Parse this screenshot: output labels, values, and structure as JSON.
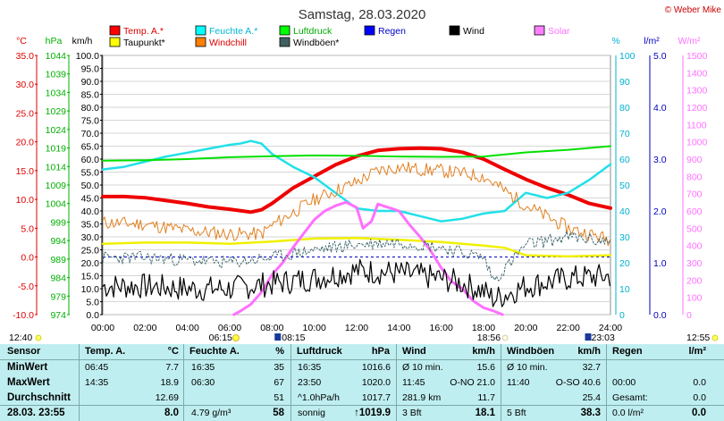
{
  "chart_data": {
    "type": "line",
    "title": "Samstag, 28.03.2020",
    "copyright": "© Weber Mike",
    "x_axis": {
      "ticks": [
        "00:00",
        "02:00",
        "04:00",
        "06:00",
        "08:00",
        "10:00",
        "12:00",
        "14:00",
        "16:00",
        "18:00",
        "20:00",
        "22:00",
        "24:00"
      ],
      "range_hours": [
        0,
        24
      ]
    },
    "left_axes": [
      {
        "unit": "°C",
        "color": "#e00000",
        "range": [
          -10,
          35
        ],
        "ticks": [
          "35.0",
          "30.0",
          "25.0",
          "20.0",
          "15.0",
          "10.0",
          "5.0",
          "0.0",
          "-5.0",
          "-10.0"
        ]
      },
      {
        "unit": "hPa",
        "color": "#00b000",
        "range": [
          974,
          1044
        ],
        "ticks": [
          "1044",
          "1039",
          "1034",
          "1029",
          "1024",
          "1019",
          "1014",
          "1009",
          "1004",
          "999",
          "994",
          "989",
          "984",
          "979",
          "974"
        ]
      },
      {
        "unit": "km/h",
        "color": "#000000",
        "range": [
          0,
          100
        ],
        "ticks": [
          "100.0",
          "95.0",
          "90.0",
          "85.0",
          "80.0",
          "75.0",
          "70.0",
          "65.0",
          "60.0",
          "55.0",
          "50.0",
          "45.0",
          "40.0",
          "35.0",
          "30.0",
          "25.0",
          "20.0",
          "15.0",
          "10.0",
          "5.0",
          "0.0"
        ]
      }
    ],
    "right_axes": [
      {
        "unit": "%",
        "color": "#00b0d0",
        "range": [
          0,
          100
        ],
        "ticks": [
          "100",
          "90",
          "80",
          "70",
          "60",
          "50",
          "40",
          "30",
          "20",
          "10",
          "0"
        ]
      },
      {
        "unit": "l/m²",
        "color": "#0000c0",
        "range": [
          0,
          5
        ],
        "ticks": [
          "5.0",
          "4.0",
          "3.0",
          "2.0",
          "1.0",
          "0.0"
        ]
      },
      {
        "unit": "W/m²",
        "color": "#ff70ff",
        "range": [
          0,
          1500
        ],
        "ticks": [
          "1500",
          "1400",
          "1300",
          "1200",
          "1100",
          "1000",
          "900",
          "800",
          "700",
          "600",
          "500",
          "400",
          "300",
          "200",
          "100",
          "0"
        ]
      }
    ],
    "legend": [
      {
        "name": "Temp. A.*",
        "color": "#ff0000"
      },
      {
        "name": "Feuchte A.*",
        "color": "#00ffff"
      },
      {
        "name": "Luftdruck",
        "color": "#00ff00"
      },
      {
        "name": "Regen",
        "color": "#0000ff"
      },
      {
        "name": "Wind",
        "color": "#000000"
      },
      {
        "name": "Solar",
        "color": "#ff80ff"
      },
      {
        "name": "Taupunkt*",
        "color": "#ffff00"
      },
      {
        "name": "Windchill",
        "color": "#ff8000"
      },
      {
        "name": "Windböen*",
        "color": "#406060"
      }
    ],
    "series": [
      {
        "name": "Temp. A.*",
        "axis": "°C",
        "color": "#ee0000",
        "width": 4,
        "x": [
          0,
          1,
          2,
          3,
          4,
          5,
          6,
          7,
          7.5,
          8,
          9,
          10,
          11,
          12,
          13,
          14,
          15,
          16,
          17,
          18,
          19,
          20,
          21,
          22,
          23,
          24
        ],
        "y": [
          10.5,
          10.5,
          10.3,
          9.8,
          9.3,
          8.7,
          8.3,
          7.8,
          8.2,
          9.3,
          12,
          14,
          16,
          17.5,
          18.5,
          18.8,
          18.9,
          18.8,
          18.2,
          17,
          15.2,
          13.5,
          12,
          10.8,
          9.3,
          8.5
        ]
      },
      {
        "name": "Feuchte A.*",
        "axis": "%",
        "color": "#22e0e8",
        "width": 2.5,
        "x": [
          0,
          1,
          2,
          3,
          4,
          5,
          6,
          6.5,
          7,
          7.5,
          8,
          9,
          10,
          11,
          12,
          13,
          14,
          15,
          16,
          17,
          18,
          19,
          20,
          21,
          22,
          23,
          24
        ],
        "y": [
          56,
          57,
          59,
          61,
          62.5,
          64,
          65.5,
          66,
          67,
          66,
          62,
          57,
          53,
          47,
          41,
          40,
          40,
          38,
          36,
          37,
          39,
          40,
          47,
          45,
          47,
          52,
          58
        ]
      },
      {
        "name": "Luftdruck",
        "axis": "hPa",
        "color": "#00e000",
        "width": 2,
        "x": [
          0,
          2,
          4,
          6,
          8,
          10,
          12,
          14,
          16,
          18,
          20,
          22,
          24
        ],
        "y": [
          1015.6,
          1015.7,
          1016,
          1016.5,
          1016.8,
          1017,
          1016.9,
          1016.7,
          1016.6,
          1016.7,
          1017.8,
          1018.5,
          1019.5
        ]
      },
      {
        "name": "Taupunkt*",
        "axis": "°C",
        "color": "#f0f000",
        "width": 2.5,
        "x": [
          0,
          2,
          4,
          6,
          8,
          10,
          12,
          14,
          16,
          18,
          19,
          20,
          21,
          22,
          23,
          24
        ],
        "y": [
          2.3,
          2.5,
          2.5,
          2.3,
          2.7,
          3.2,
          3.3,
          3.0,
          2.6,
          2.0,
          1.6,
          0.3,
          0.2,
          0.1,
          0.2,
          0.3
        ]
      },
      {
        "name": "Solar",
        "axis": "W/m²",
        "color": "#ff70ff",
        "width": 3,
        "x": [
          6.2,
          6.5,
          7,
          7.5,
          8,
          8.5,
          9,
          9.5,
          10,
          10.5,
          11,
          11.5,
          12,
          12.3,
          12.7,
          13,
          13.5,
          14,
          14.5,
          15,
          15.5,
          16,
          16.5,
          17,
          17.5,
          18,
          18.5,
          18.9
        ],
        "y": [
          0,
          20,
          60,
          130,
          230,
          300,
          390,
          470,
          550,
          600,
          630,
          650,
          620,
          500,
          540,
          640,
          620,
          600,
          520,
          450,
          370,
          270,
          190,
          150,
          80,
          40,
          20,
          0
        ]
      },
      {
        "name": "Windchill",
        "axis": "°C",
        "color": "#e08020",
        "width": 1,
        "noisy": true,
        "amp": 1.2,
        "seed": 11,
        "x": [
          0,
          2,
          4,
          6,
          7.5,
          8,
          10,
          12,
          13,
          14,
          15,
          16,
          17,
          18,
          20,
          22,
          24
        ],
        "y": [
          6,
          5.7,
          4.6,
          4.0,
          4.0,
          5.5,
          10,
          13,
          15,
          15.6,
          15.2,
          15,
          14.5,
          14,
          9,
          5,
          3
        ]
      },
      {
        "name": "Windböen*",
        "axis": "km/h",
        "color": "#406870",
        "width": 1,
        "dashed": true,
        "noisy": true,
        "amp": 2.5,
        "seed": 23,
        "x": [
          0,
          2,
          4,
          6,
          8,
          10,
          12,
          14,
          16,
          18,
          18.5,
          20,
          22,
          24
        ],
        "y": [
          22,
          22,
          21,
          20,
          22,
          25,
          27,
          28,
          26,
          22,
          13,
          27,
          30,
          28
        ]
      },
      {
        "name": "Wind",
        "axis": "km/h",
        "color": "#000000",
        "width": 1.2,
        "noisy": true,
        "amp": 5,
        "seed": 7,
        "x": [
          0,
          2,
          4,
          6,
          8,
          10,
          12,
          14,
          16,
          17,
          18,
          18.5,
          20,
          22,
          24
        ],
        "y": [
          11,
          11,
          10,
          10,
          12,
          14,
          17,
          16,
          14,
          12,
          9,
          6,
          11,
          14,
          15
        ]
      }
    ],
    "reference_lines": [
      {
        "axis": "°C",
        "value": 0,
        "color": "#0000cc",
        "dashed": true
      }
    ],
    "annotations": {
      "sunrise": "06:15",
      "sunset": "18:56",
      "moonrise": "08:15",
      "moonset": "23:03",
      "left_time": "12:40",
      "right_time": "12:55"
    }
  },
  "stats": {
    "headers": {
      "sensor": "Sensor",
      "temp": "Temp. A.",
      "temp_unit": "°C",
      "feuchte": "Feuchte A.",
      "feuchte_unit": "%",
      "luftdruck": "Luftdruck",
      "luftdruck_unit": "hPa",
      "wind": "Wind",
      "wind_unit": "km/h",
      "boeen": "Windböen",
      "boeen_unit": "km/h",
      "regen": "Regen",
      "regen_unit": "l/m²"
    },
    "rows": [
      {
        "label": "MinWert",
        "temp_time": "06:45",
        "temp": "7.7",
        "feuchte_time": "16:35",
        "feuchte": "35",
        "druck_time": "16:35",
        "druck": "1016.6",
        "wind_label": "Ø 10 min.",
        "wind": "15.6",
        "boe_label": "Ø 10 min.",
        "boe": "32.7",
        "regen_label": "",
        "regen": ""
      },
      {
        "label": "MaxWert",
        "temp_time": "14:35",
        "temp": "18.9",
        "feuchte_time": "06:30",
        "feuchte": "67",
        "druck_time": "23:50",
        "druck": "1020.0",
        "wind_label": "11:45",
        "wind_dir": "O-NO 21.0",
        "wind": "",
        "boe_label": "11:40",
        "boe_dir": "O-SO 40.6",
        "boe": "",
        "regen_label": "00:00",
        "regen": "0.0"
      },
      {
        "label": "Durchschnitt",
        "temp_time": "",
        "temp": "12.69",
        "feuchte_time": "",
        "feuchte": "51",
        "druck_time": "^1.0hPa/h",
        "druck": "1017.7",
        "wind_label": "281.9 km",
        "wind": "11.7",
        "boe_label": "",
        "boe": "25.4",
        "regen_label": "Gesamt:",
        "regen": "0.0"
      },
      {
        "label": "28.03.  23:55",
        "temp_time": "",
        "temp": "8.0",
        "feuchte_time": "4.79 g/m³",
        "feuchte": "58",
        "druck_time": "sonnig",
        "druck": "↑1019.9",
        "wind_label": "3 Bft",
        "wind": "18.1",
        "boe_label": "5 Bft",
        "boe": "38.3",
        "regen_label": "0.0 l/m²",
        "regen": "0.0"
      }
    ]
  }
}
